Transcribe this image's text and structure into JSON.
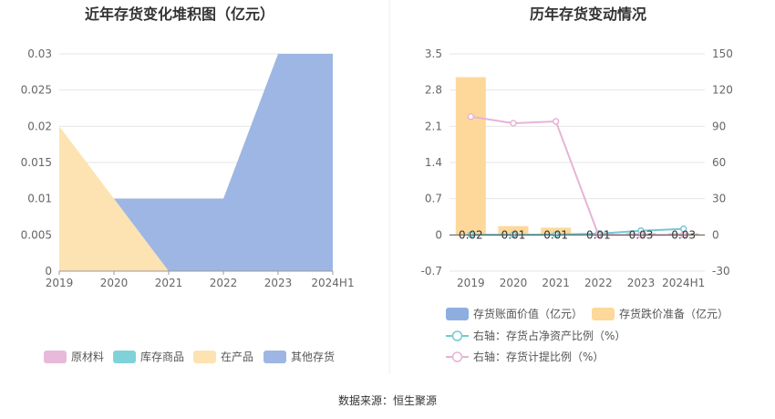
{
  "source": "数据来源：恒生聚源",
  "chart_data": [
    {
      "type": "area",
      "title": "近年存货变化堆积图（亿元）",
      "categories": [
        "2019",
        "2020",
        "2021",
        "2022",
        "2023",
        "2024H1"
      ],
      "ylim": [
        0,
        0.03
      ],
      "yticks": [
        "0",
        "0.005",
        "0.01",
        "0.015",
        "0.02",
        "0.025",
        "0.03"
      ],
      "series": [
        {
          "name": "原材料",
          "color": "#e9b9d9",
          "values": [
            0,
            0,
            0,
            0,
            0,
            0
          ]
        },
        {
          "name": "库存商品",
          "color": "#7fd3d8",
          "values": [
            0,
            0,
            0,
            0,
            0,
            0
          ]
        },
        {
          "name": "在产品",
          "color": "#fde3b2",
          "values": [
            0.02,
            0.01,
            0,
            0,
            0,
            0
          ]
        },
        {
          "name": "其他存货",
          "color": "#9db6e3",
          "values": [
            0,
            0,
            0.01,
            0.01,
            0.03,
            0.03
          ]
        }
      ],
      "legend_position": "bottom"
    },
    {
      "type": "bar",
      "title": "历年存货变动情况",
      "categories": [
        "2019",
        "2020",
        "2021",
        "2022",
        "2023",
        "2024H1"
      ],
      "left_axis": {
        "ylim": [
          -0.7,
          3.5
        ],
        "ticks": [
          "-0.7",
          "0",
          "0.7",
          "1.4",
          "2.1",
          "2.8",
          "3.5"
        ]
      },
      "right_axis": {
        "ylim": [
          -30,
          150
        ],
        "ticks": [
          "-30",
          "0",
          "30",
          "60",
          "90",
          "120",
          "150"
        ]
      },
      "series": [
        {
          "name": "存货账面价值（亿元）",
          "kind": "bar",
          "axis": "left",
          "color": "#8eaee0",
          "values": [
            0.02,
            0.01,
            0.01,
            0.01,
            0.03,
            0.03
          ],
          "labels": [
            "0.02",
            "0.01",
            "0.01",
            "0.01",
            "0.03",
            "0.03"
          ]
        },
        {
          "name": "存货跌价准备（亿元）",
          "kind": "bar",
          "axis": "left",
          "color": "#fdd89a",
          "values": [
            3.05,
            0.17,
            0.14,
            0.02,
            0.02,
            0.02
          ]
        },
        {
          "name": "右轴：存货占净资产比例（%）",
          "kind": "line",
          "axis": "right",
          "color": "#74c8d4",
          "values": [
            0.2,
            0.1,
            0.3,
            1.0,
            3.5,
            5.0
          ]
        },
        {
          "name": "右轴：存货计提比例（%）",
          "kind": "line",
          "axis": "right",
          "color": "#e8b3d6",
          "values": [
            98,
            92.5,
            94,
            0,
            0,
            0
          ]
        }
      ],
      "legend_position": "bottom"
    }
  ]
}
